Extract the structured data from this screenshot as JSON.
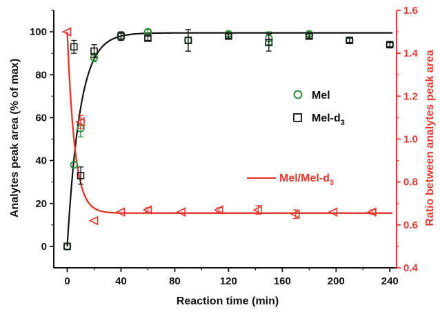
{
  "chart_data": {
    "type": "scatter",
    "xlabel": "Reaction time (min)",
    "ylabel_left": "Analytes peak area (% of max)",
    "ylabel_right": "Ratio between analytes peak area",
    "xlim": [
      -10,
      245
    ],
    "xticks": [
      "0",
      "40",
      "80",
      "120",
      "160",
      "200",
      "240"
    ],
    "ylim_left": [
      -10,
      110
    ],
    "yticks_left": [
      "0",
      "20",
      "40",
      "60",
      "80",
      "100"
    ],
    "ylim_right": [
      0.4,
      1.6
    ],
    "yticks_right": [
      "0.4",
      "0.6",
      "0.8",
      "1.0",
      "1.2",
      "1.4",
      "1.6"
    ],
    "colors": {
      "mel": "#2e8b3e",
      "mel_d3": "#111111",
      "ratio": "#e8392f",
      "fit_black": "#111111",
      "fit_red": "#e8392f"
    },
    "series": [
      {
        "name": "Mel",
        "axis": "left",
        "marker": "circle",
        "x": [
          0,
          5,
          10,
          20,
          40,
          60,
          90,
          120,
          150,
          180,
          210,
          240
        ],
        "y": [
          0,
          38,
          55,
          88,
          98,
          100,
          96,
          99,
          97,
          99,
          96,
          94
        ],
        "err": [
          0,
          0,
          4,
          2,
          2,
          1,
          5,
          1,
          3,
          1,
          1,
          1
        ]
      },
      {
        "name": "Mel-d",
        "name_sub": "3",
        "axis": "left",
        "marker": "square",
        "x": [
          0,
          5,
          10,
          20,
          40,
          60,
          90,
          120,
          150,
          180,
          210,
          240
        ],
        "y": [
          0,
          93,
          33,
          91,
          98,
          97,
          96,
          98,
          95,
          98,
          96,
          94
        ],
        "err": [
          0,
          3,
          4,
          3,
          2,
          1,
          5,
          1,
          4,
          1,
          1,
          1
        ]
      },
      {
        "name": "Mel/Mel-d",
        "name_sub": "3",
        "axis": "right",
        "marker": "triangle-left",
        "x": [
          0,
          10,
          20,
          40,
          60,
          85,
          113,
          142,
          170,
          198,
          227
        ],
        "y": [
          1.5,
          1.08,
          0.62,
          0.66,
          0.67,
          0.66,
          0.67,
          0.67,
          0.65,
          0.66,
          0.66
        ],
        "err": [
          0,
          0.03,
          0,
          0,
          0.01,
          0,
          0.01,
          0.02,
          0.02,
          0,
          0.01
        ]
      }
    ],
    "fits": [
      {
        "axis": "left",
        "description": "exponential rise",
        "plateau": 99.5,
        "rate": 0.105
      },
      {
        "axis": "right",
        "description": "exponential decay",
        "plateau": 0.655,
        "amplitude": 0.845,
        "rate": 0.18
      }
    ],
    "legend": [
      {
        "marker": "circle",
        "label": "Mel"
      },
      {
        "marker": "square",
        "label": "Mel-d",
        "sub": "3"
      },
      {
        "marker": "line",
        "label": "Mel/Mel-d",
        "sub": "3"
      }
    ],
    "grid": false
  }
}
